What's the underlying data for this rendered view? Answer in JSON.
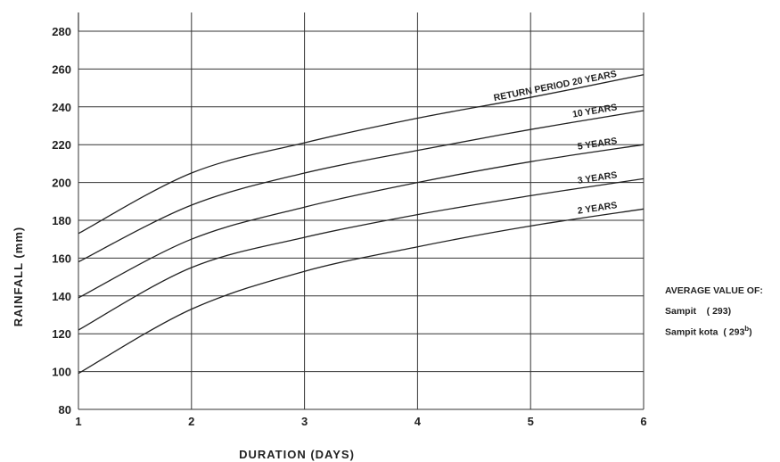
{
  "chart_data": {
    "type": "line",
    "xlabel": "DURATION  (DAYS)",
    "ylabel": "RAINFALL  (mm)",
    "xlim": [
      1,
      6
    ],
    "ylim": [
      80,
      290
    ],
    "grid": true,
    "x_ticks": [
      "1",
      "2",
      "3",
      "4",
      "5",
      "6"
    ],
    "y_ticks": [
      "80",
      "100",
      "120",
      "140",
      "160",
      "180",
      "200",
      "220",
      "240",
      "260",
      "280"
    ],
    "x": [
      1,
      2,
      3,
      4,
      5,
      6
    ],
    "series": [
      {
        "name": "RETURN PERIOD 20 YEARS",
        "values": [
          173,
          205,
          221,
          234,
          245,
          257
        ]
      },
      {
        "name": "10 YEARS",
        "values": [
          158,
          188,
          205,
          217,
          228,
          238
        ]
      },
      {
        "name": "5 YEARS",
        "values": [
          139,
          170,
          187,
          200,
          211,
          220
        ]
      },
      {
        "name": "3 YEARS",
        "values": [
          122,
          155,
          171,
          183,
          193,
          202
        ]
      },
      {
        "name": "2 YEARS",
        "values": [
          99,
          133,
          153,
          166,
          177,
          186
        ]
      }
    ]
  },
  "note": {
    "heading": "AVERAGE VALUE OF:",
    "line1": "Sampit    ( 293)",
    "line2_main": "Sampit kota  ( 293",
    "line2_sup": "b",
    "line2_end": ")"
  }
}
